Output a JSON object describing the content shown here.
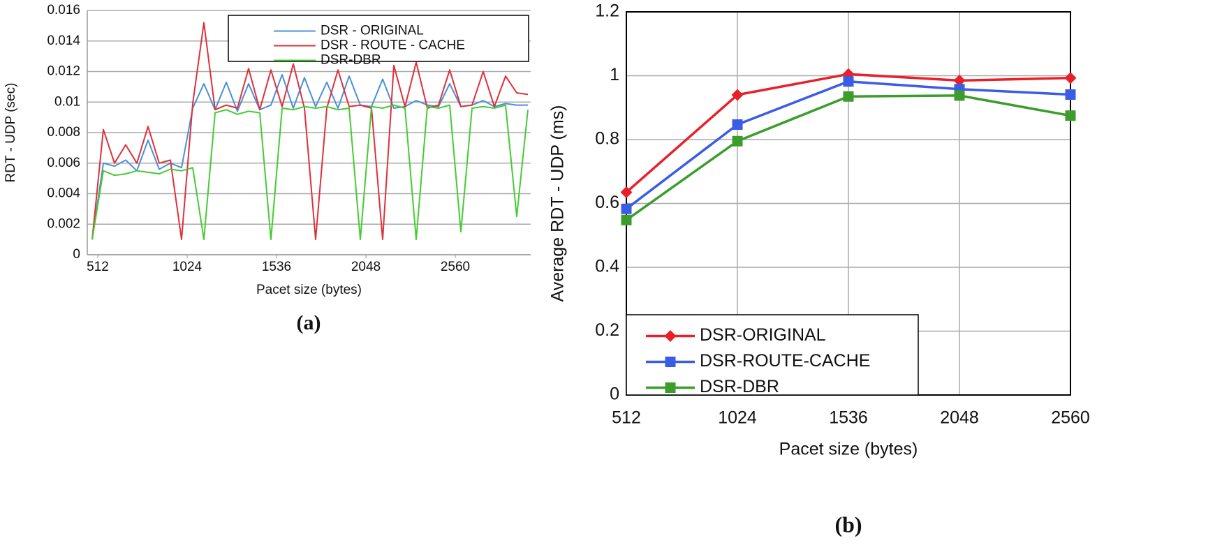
{
  "chart_data": [
    {
      "type": "line",
      "caption": "(a)",
      "x_label": "Pacet size (bytes)",
      "y_label": "RDT - UDP (sec)",
      "x": [
        480,
        544,
        608,
        672,
        736,
        800,
        864,
        928,
        992,
        1056,
        1120,
        1184,
        1248,
        1312,
        1376,
        1440,
        1504,
        1568,
        1632,
        1696,
        1760,
        1824,
        1888,
        1952,
        2016,
        2080,
        2144,
        2208,
        2272,
        2336,
        2400,
        2464,
        2528,
        2592,
        2656,
        2720,
        2784,
        2848,
        2912,
        2976
      ],
      "series": [
        {
          "name": "DSR - ORIGINAL",
          "color": "#4a90d9",
          "values": [
            0.001,
            0.006,
            0.0058,
            0.0062,
            0.0055,
            0.0075,
            0.0056,
            0.006,
            0.0057,
            0.0096,
            0.0112,
            0.0095,
            0.0113,
            0.0094,
            0.0112,
            0.0095,
            0.0098,
            0.0118,
            0.0096,
            0.0116,
            0.0097,
            0.0113,
            0.0096,
            0.0117,
            0.0098,
            0.0097,
            0.0115,
            0.0096,
            0.0097,
            0.0101,
            0.0098,
            0.0097,
            0.0112,
            0.0097,
            0.0098,
            0.0101,
            0.0097,
            0.0099,
            0.0098,
            0.0098
          ]
        },
        {
          "name": "DSR - ROUTE - CACHE",
          "color": "#e0303a",
          "values": [
            0.001,
            0.0082,
            0.006,
            0.0072,
            0.006,
            0.0084,
            0.006,
            0.0062,
            0.001,
            0.0099,
            0.0152,
            0.0095,
            0.0098,
            0.0096,
            0.0122,
            0.0095,
            0.0121,
            0.0097,
            0.0125,
            0.0096,
            0.001,
            0.0096,
            0.0121,
            0.0097,
            0.0098,
            0.0096,
            0.001,
            0.0124,
            0.0097,
            0.0126,
            0.0096,
            0.0098,
            0.0121,
            0.0097,
            0.0098,
            0.012,
            0.0097,
            0.0117,
            0.0106,
            0.0105
          ]
        },
        {
          "name": "DSR-DBR",
          "color": "#44cc33",
          "values": [
            0.001,
            0.0055,
            0.0052,
            0.0053,
            0.0055,
            0.0054,
            0.0053,
            0.0056,
            0.0055,
            0.0057,
            0.001,
            0.0093,
            0.0095,
            0.0092,
            0.0094,
            0.0093,
            0.001,
            0.0096,
            0.0095,
            0.0097,
            0.0096,
            0.0097,
            0.0095,
            0.0096,
            0.001,
            0.0097,
            0.0096,
            0.0098,
            0.0096,
            0.001,
            0.0097,
            0.0096,
            0.0098,
            0.0015,
            0.0096,
            0.0097,
            0.0096,
            0.0098,
            0.0025,
            0.0095
          ]
        }
      ],
      "xlim": [
        452,
        2992
      ],
      "xticks": [
        512,
        1024,
        1536,
        2048,
        2560
      ],
      "ylim": [
        0,
        0.016
      ],
      "yticks": [
        0,
        0.002,
        0.004,
        0.006,
        0.008,
        0.01,
        0.012,
        0.014,
        0.016
      ],
      "grid": "y",
      "legend": "top-right"
    },
    {
      "type": "line",
      "caption": "(b)",
      "x_label": "Pacet size (bytes)",
      "y_label": "Average RDT - UDP (ms)",
      "x": [
        512,
        1024,
        1536,
        2048,
        2560
      ],
      "series": [
        {
          "name": "DSR-ORIGINAL",
          "color": "#e8202a",
          "marker": "diamond",
          "values": [
            0.635,
            0.94,
            1.005,
            0.985,
            0.993
          ]
        },
        {
          "name": "DSR-ROUTE-CACHE",
          "color": "#3b5ce6",
          "marker": "square",
          "values": [
            0.583,
            0.847,
            0.982,
            0.958,
            0.941
          ]
        },
        {
          "name": "DSR-DBR",
          "color": "#3c9c2c",
          "marker": "square",
          "values": [
            0.548,
            0.795,
            0.935,
            0.938,
            0.875
          ]
        }
      ],
      "xlim": [
        512,
        2560
      ],
      "xticks": [
        512,
        1024,
        1536,
        2048,
        2560
      ],
      "ylim": [
        0,
        1.2
      ],
      "yticks": [
        0,
        0.2,
        0.4,
        0.6,
        0.8,
        1,
        1.2
      ],
      "grid": "both",
      "legend": "bottom-left"
    }
  ]
}
